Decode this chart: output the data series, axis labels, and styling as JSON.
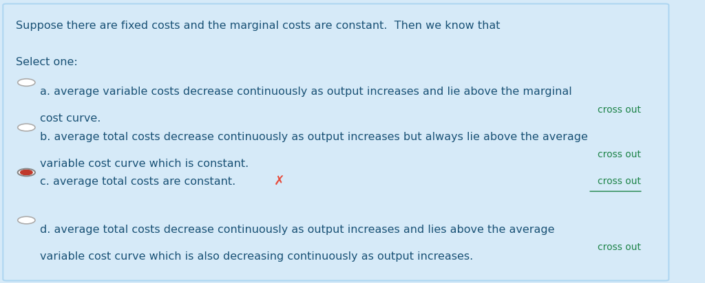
{
  "background_color": "#d6eaf8",
  "border_color": "#aed6f1",
  "text_color": "#1a5276",
  "green_color": "#1e8449",
  "red_color": "#e74c3c",
  "question": "Suppose there are fixed costs and the marginal costs are constant.  Then we know that",
  "select_label": "Select one:",
  "options": [
    {
      "letter": "a",
      "text_line1": "a. average variable costs decrease continuously as output increases and lie above the marginal",
      "text_line2": "cost curve.",
      "selected": false,
      "cross_out": true,
      "cross_out_underline": false,
      "wrong_mark": false
    },
    {
      "letter": "b",
      "text_line1": "b. average total costs decrease continuously as output increases but always lie above the average",
      "text_line2": "variable cost curve which is constant.",
      "selected": false,
      "cross_out": true,
      "cross_out_underline": false,
      "wrong_mark": false
    },
    {
      "letter": "c",
      "text_line1": "c. average total costs are constant.",
      "text_line2": null,
      "selected": true,
      "cross_out": true,
      "cross_out_underline": true,
      "wrong_mark": true
    },
    {
      "letter": "d",
      "text_line1": "d. average total costs decrease continuously as output increases and lies above the average",
      "text_line2": "variable cost curve which is also decreasing continuously as output increases.",
      "selected": false,
      "cross_out": true,
      "cross_out_underline": false,
      "wrong_mark": false
    }
  ],
  "figsize": [
    10.24,
    4.12
  ],
  "dpi": 100
}
